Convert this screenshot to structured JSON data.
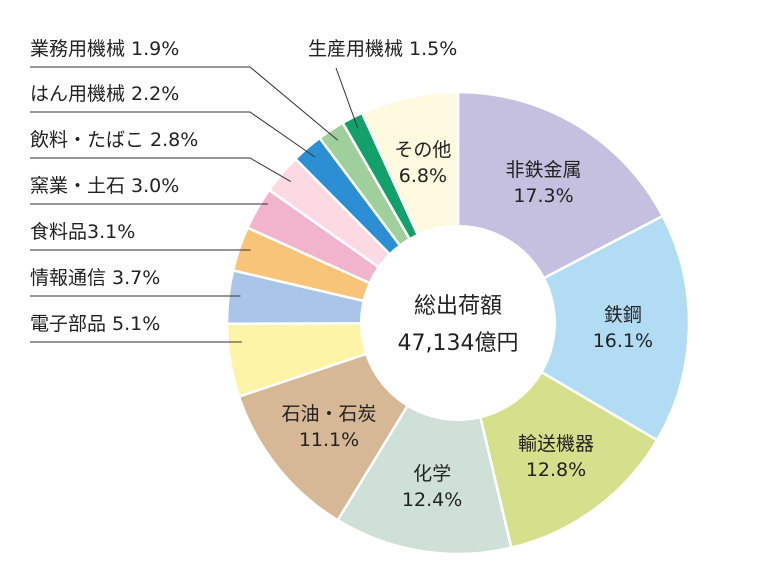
{
  "chart_data": {
    "type": "pie",
    "style": "donut",
    "center": {
      "title": "総出荷額",
      "value": "47,134億円"
    },
    "slices": [
      {
        "name": "非鉄金属",
        "percent_label": "17.3%",
        "value": 17.3,
        "color": "#c6c0e0",
        "placement": "inside"
      },
      {
        "name": "鉄鋼",
        "percent_label": "16.1%",
        "value": 16.1,
        "color": "#b2dcf4",
        "placement": "inside"
      },
      {
        "name": "輸送機器",
        "percent_label": "12.8%",
        "value": 12.8,
        "color": "#d5e08c",
        "placement": "inside"
      },
      {
        "name": "化学",
        "percent_label": "12.4%",
        "value": 12.4,
        "color": "#cfe0d9",
        "placement": "inside"
      },
      {
        "name": "石油・石炭",
        "percent_label": "11.1%",
        "value": 11.1,
        "color": "#d6b896",
        "placement": "inside"
      },
      {
        "name": "電子部品",
        "percent_label": "5.1%",
        "value": 5.1,
        "color": "#fdf4a8",
        "placement": "outside"
      },
      {
        "name": "情報通信",
        "percent_label": "3.7%",
        "value": 3.7,
        "color": "#a9c6e8",
        "placement": "outside"
      },
      {
        "name": "食料品",
        "percent_label": "3.1%",
        "value": 3.1,
        "color": "#f8c477",
        "placement": "outside",
        "compact": true
      },
      {
        "name": "窯業・土石",
        "percent_label": "3.0%",
        "value": 3.0,
        "color": "#f2b4cc",
        "placement": "outside"
      },
      {
        "name": "飲料・たばこ",
        "percent_label": "2.8%",
        "value": 2.8,
        "color": "#fcd9e3",
        "placement": "outside"
      },
      {
        "name": "はん用機械",
        "percent_label": "2.2%",
        "value": 2.2,
        "color": "#2d8fd3",
        "placement": "outside"
      },
      {
        "name": "業務用機械",
        "percent_label": "1.9%",
        "value": 1.9,
        "color": "#9fcf9a",
        "placement": "outside"
      },
      {
        "name": "生産用機械",
        "percent_label": "1.5%",
        "value": 1.5,
        "color": "#14a06a",
        "placement": "outside"
      },
      {
        "name": "その他",
        "percent_label": "6.8%",
        "value": 6.8,
        "color": "#fefae0",
        "placement": "inside"
      }
    ]
  }
}
